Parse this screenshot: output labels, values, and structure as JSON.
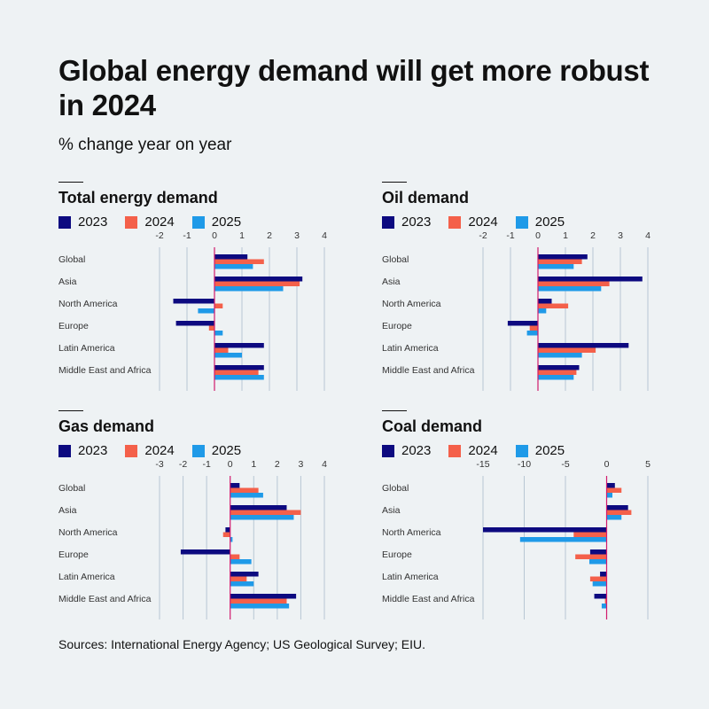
{
  "title": "Global energy demand will get more robust in 2024",
  "subtitle": "% change year on year",
  "source": "Sources: International Energy Agency; US Geological Survey; EIU.",
  "colors": {
    "2023": "#0d0a80",
    "2024": "#f4604a",
    "2025": "#1f9ae8",
    "grid": "#b8c7d4",
    "zero": "#d11a6d",
    "text": "#333333"
  },
  "chart_data": [
    {
      "type": "bar",
      "title": "Total energy demand",
      "categories": [
        "Global",
        "Asia",
        "North America",
        "Europe",
        "Latin America",
        "Middle East and Africa"
      ],
      "xlim": [
        -2,
        4
      ],
      "ticks": [
        -2,
        -1,
        0,
        1,
        2,
        3,
        4
      ],
      "series": [
        {
          "name": "2023",
          "values": [
            1.2,
            3.2,
            -1.5,
            -1.4,
            1.8,
            1.8
          ]
        },
        {
          "name": "2024",
          "values": [
            1.8,
            3.1,
            0.3,
            -0.2,
            0.5,
            1.6
          ]
        },
        {
          "name": "2025",
          "values": [
            1.4,
            2.5,
            -0.6,
            0.3,
            1.0,
            1.8
          ]
        }
      ]
    },
    {
      "type": "bar",
      "title": "Oil demand",
      "categories": [
        "Global",
        "Asia",
        "North America",
        "Europe",
        "Latin America",
        "Middle East and Africa"
      ],
      "xlim": [
        -2,
        4
      ],
      "ticks": [
        -2,
        -1,
        0,
        1,
        2,
        3,
        4
      ],
      "series": [
        {
          "name": "2023",
          "values": [
            1.8,
            3.8,
            0.5,
            -1.1,
            3.3,
            1.5
          ]
        },
        {
          "name": "2024",
          "values": [
            1.6,
            2.6,
            1.1,
            -0.3,
            2.1,
            1.4
          ]
        },
        {
          "name": "2025",
          "values": [
            1.3,
            2.3,
            0.3,
            -0.4,
            1.6,
            1.3
          ]
        }
      ]
    },
    {
      "type": "bar",
      "title": "Gas demand",
      "categories": [
        "Global",
        "Asia",
        "North America",
        "Europe",
        "Latin America",
        "Middle East and Africa"
      ],
      "xlim": [
        -3,
        4
      ],
      "ticks": [
        -3,
        -2,
        -1,
        0,
        1,
        2,
        3,
        4
      ],
      "series": [
        {
          "name": "2023",
          "values": [
            0.4,
            2.4,
            -0.2,
            -2.1,
            1.2,
            2.8
          ]
        },
        {
          "name": "2024",
          "values": [
            1.2,
            3.0,
            -0.3,
            0.4,
            0.7,
            2.4
          ]
        },
        {
          "name": "2025",
          "values": [
            1.4,
            2.7,
            0.1,
            0.9,
            1.0,
            2.5
          ]
        }
      ]
    },
    {
      "type": "bar",
      "title": "Coal demand",
      "categories": [
        "Global",
        "Asia",
        "North America",
        "Europe",
        "Latin America",
        "Middle East and Africa"
      ],
      "xlim": [
        -15,
        5
      ],
      "ticks": [
        -15,
        -10,
        -5,
        0,
        5
      ],
      "series": [
        {
          "name": "2023",
          "values": [
            1.0,
            2.6,
            -15.0,
            -2.0,
            -0.8,
            -1.5
          ]
        },
        {
          "name": "2024",
          "values": [
            1.8,
            3.0,
            -4.0,
            -3.8,
            -2.0,
            -0.2
          ]
        },
        {
          "name": "2025",
          "values": [
            0.7,
            1.8,
            -10.5,
            -2.1,
            -1.7,
            -0.6
          ]
        }
      ]
    }
  ]
}
